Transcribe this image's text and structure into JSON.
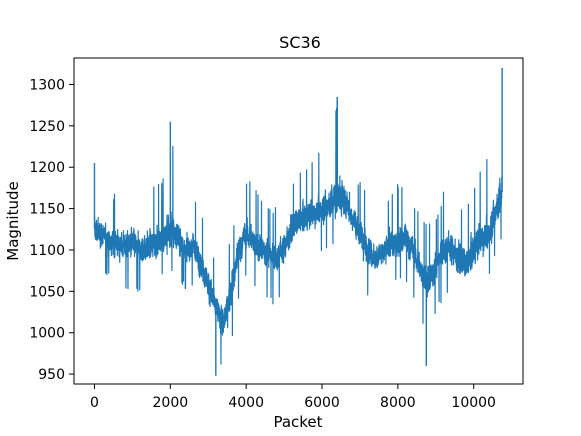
{
  "chart_data": {
    "type": "line",
    "title": "SC36",
    "xlabel": "Packet",
    "ylabel": "Magnitude",
    "xlim": [
      -540,
      11300
    ],
    "ylim": [
      938,
      1332
    ],
    "xticks": [
      0,
      2000,
      4000,
      6000,
      8000,
      10000
    ],
    "yticks": [
      950,
      1000,
      1050,
      1100,
      1150,
      1200,
      1250,
      1300
    ],
    "grid": false,
    "legend": "none",
    "series_color": "#1f77b4",
    "series": [
      {
        "x": [
          0,
          200,
          400,
          600,
          800,
          1000,
          1200,
          1400,
          1600,
          1800,
          2000,
          2200,
          2400,
          2600,
          2800,
          3000,
          3200,
          3400,
          3600,
          3800,
          4000,
          4200,
          4400,
          4600,
          4800,
          5000,
          5200,
          5400,
          5600,
          5800,
          6000,
          6200,
          6400,
          6600,
          6800,
          7000,
          7200,
          7400,
          7600,
          7800,
          8000,
          8200,
          8400,
          8600,
          8800,
          9000,
          9200,
          9400,
          9600,
          9800,
          10000,
          10200,
          10400,
          10600,
          10750
        ],
        "center": [
          1125,
          1120,
          1110,
          1108,
          1105,
          1110,
          1100,
          1105,
          1110,
          1115,
          1125,
          1115,
          1100,
          1105,
          1085,
          1060,
          1030,
          1010,
          1050,
          1100,
          1120,
          1110,
          1100,
          1095,
          1090,
          1105,
          1125,
          1135,
          1140,
          1145,
          1150,
          1155,
          1165,
          1160,
          1140,
          1120,
          1100,
          1090,
          1095,
          1105,
          1110,
          1115,
          1100,
          1075,
          1060,
          1080,
          1100,
          1105,
          1090,
          1080,
          1100,
          1115,
          1120,
          1150,
          1170
        ],
        "low": [
          1078,
          1072,
          1062,
          1058,
          1050,
          1048,
          1042,
          1050,
          1055,
          1065,
          1070,
          1060,
          1050,
          1052,
          1030,
          1000,
          965,
          948,
          980,
          1040,
          1070,
          1055,
          1045,
          1035,
          1030,
          1050,
          1070,
          1085,
          1090,
          1095,
          1098,
          1098,
          1105,
          1098,
          1085,
          1060,
          1045,
          1035,
          1040,
          1050,
          1060,
          1062,
          1045,
          1015,
          992,
          1020,
          1040,
          1045,
          1030,
          1025,
          1045,
          1060,
          1068,
          1095,
          1110
        ],
        "high": [
          1205,
          1180,
          1175,
          1170,
          1168,
          1172,
          1165,
          1170,
          1180,
          1185,
          1255,
          1180,
          1165,
          1165,
          1150,
          1120,
          1090,
          1070,
          1120,
          1170,
          1190,
          1180,
          1160,
          1160,
          1150,
          1170,
          1185,
          1195,
          1205,
          1210,
          1225,
          1240,
          1285,
          1240,
          1205,
          1185,
          1165,
          1155,
          1160,
          1170,
          1180,
          1190,
          1165,
          1140,
          1130,
          1145,
          1170,
          1175,
          1160,
          1150,
          1180,
          1200,
          1215,
          1240,
          1320
        ]
      }
    ]
  }
}
